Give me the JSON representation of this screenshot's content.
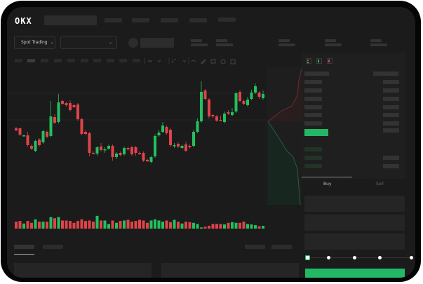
{
  "header": {
    "logo": "OKX"
  },
  "toolbar": {
    "market_dropdown": "Spot Trading",
    "chevron": "⌄"
  },
  "trade_panel": {
    "tabs": [
      "Buy",
      "Sell"
    ],
    "active_tab": "Buy",
    "leverage_slider_value": 0
  },
  "colors": {
    "up": "#22c05e",
    "down": "#e0434a",
    "background": "#1b1b1b",
    "accent": "#22b866"
  },
  "chart_data": {
    "type": "candlestick",
    "candles": [
      [
        68,
        70,
        64,
        65
      ],
      [
        68,
        69,
        57,
        59
      ],
      [
        57,
        59,
        56,
        58
      ],
      [
        58,
        63,
        42,
        44
      ],
      [
        43,
        45,
        37,
        39
      ],
      [
        36,
        52,
        34,
        50
      ],
      [
        52,
        54,
        42,
        44
      ],
      [
        48,
        66,
        46,
        64
      ],
      [
        63,
        65,
        54,
        56
      ],
      [
        57,
        107,
        55,
        85
      ],
      [
        84,
        88,
        74,
        76
      ],
      [
        77,
        117,
        75,
        105
      ],
      [
        107,
        109,
        101,
        103
      ],
      [
        104,
        106,
        99,
        101
      ],
      [
        104,
        108,
        92,
        94
      ],
      [
        101,
        103,
        97,
        98
      ],
      [
        102,
        104,
        79,
        81
      ],
      [
        81,
        83,
        58,
        60
      ],
      [
        63,
        65,
        58,
        60
      ],
      [
        61,
        63,
        28,
        33
      ],
      [
        33,
        35,
        31,
        32
      ],
      [
        32,
        43,
        29,
        41
      ],
      [
        42,
        47,
        35,
        37
      ],
      [
        37,
        41,
        33,
        38
      ],
      [
        39,
        45,
        37,
        43
      ],
      [
        43,
        45,
        22,
        27
      ],
      [
        27,
        34,
        24,
        32
      ],
      [
        33,
        35,
        28,
        30
      ],
      [
        31,
        42,
        29,
        40
      ],
      [
        40,
        42,
        36,
        38
      ],
      [
        41,
        43,
        29,
        31
      ],
      [
        41,
        43,
        29,
        33
      ],
      [
        33,
        35,
        30,
        32
      ],
      [
        33,
        35,
        20,
        22
      ],
      [
        23,
        25,
        20,
        21
      ],
      [
        20,
        29,
        18,
        27
      ],
      [
        28,
        60,
        26,
        57
      ],
      [
        58,
        66,
        56,
        62
      ],
      [
        63,
        77,
        61,
        72
      ],
      [
        70,
        72,
        59,
        61
      ],
      [
        66,
        68,
        41,
        44
      ],
      [
        43,
        47,
        40,
        44
      ],
      [
        46,
        48,
        40,
        42
      ],
      [
        40,
        45,
        38,
        43
      ],
      [
        45,
        49,
        34,
        36
      ],
      [
        43,
        45,
        39,
        41
      ],
      [
        43,
        66,
        41,
        63
      ],
      [
        63,
        82,
        61,
        78
      ],
      [
        78,
        135,
        76,
        120
      ],
      [
        122,
        124,
        108,
        110
      ],
      [
        109,
        111,
        82,
        85
      ],
      [
        87,
        89,
        83,
        85
      ],
      [
        85,
        87,
        77,
        79
      ],
      [
        80,
        86,
        78,
        79
      ],
      [
        77,
        92,
        75,
        89
      ],
      [
        91,
        94,
        87,
        89
      ],
      [
        87,
        97,
        85,
        91
      ],
      [
        92,
        120,
        90,
        118
      ],
      [
        120,
        122,
        105,
        107
      ],
      [
        107,
        109,
        101,
        103
      ],
      [
        101,
        113,
        99,
        109
      ],
      [
        110,
        123,
        108,
        119
      ],
      [
        119,
        132,
        117,
        128
      ],
      [
        119,
        121,
        110,
        113
      ],
      [
        111,
        122,
        109,
        117
      ]
    ],
    "volume": [
      30,
      33,
      22,
      33,
      25,
      40,
      30,
      30,
      30,
      50,
      45,
      50,
      35,
      35,
      33,
      25,
      33,
      40,
      33,
      35,
      30,
      55,
      35,
      35,
      20,
      35,
      25,
      33,
      35,
      38,
      30,
      33,
      38,
      35,
      25,
      35,
      40,
      35,
      30,
      35,
      28,
      38,
      30,
      22,
      30,
      28,
      25,
      20,
      5,
      8,
      12,
      20,
      20,
      20,
      18,
      25,
      28,
      25,
      25,
      30,
      20,
      18,
      15,
      10,
      12
    ]
  }
}
